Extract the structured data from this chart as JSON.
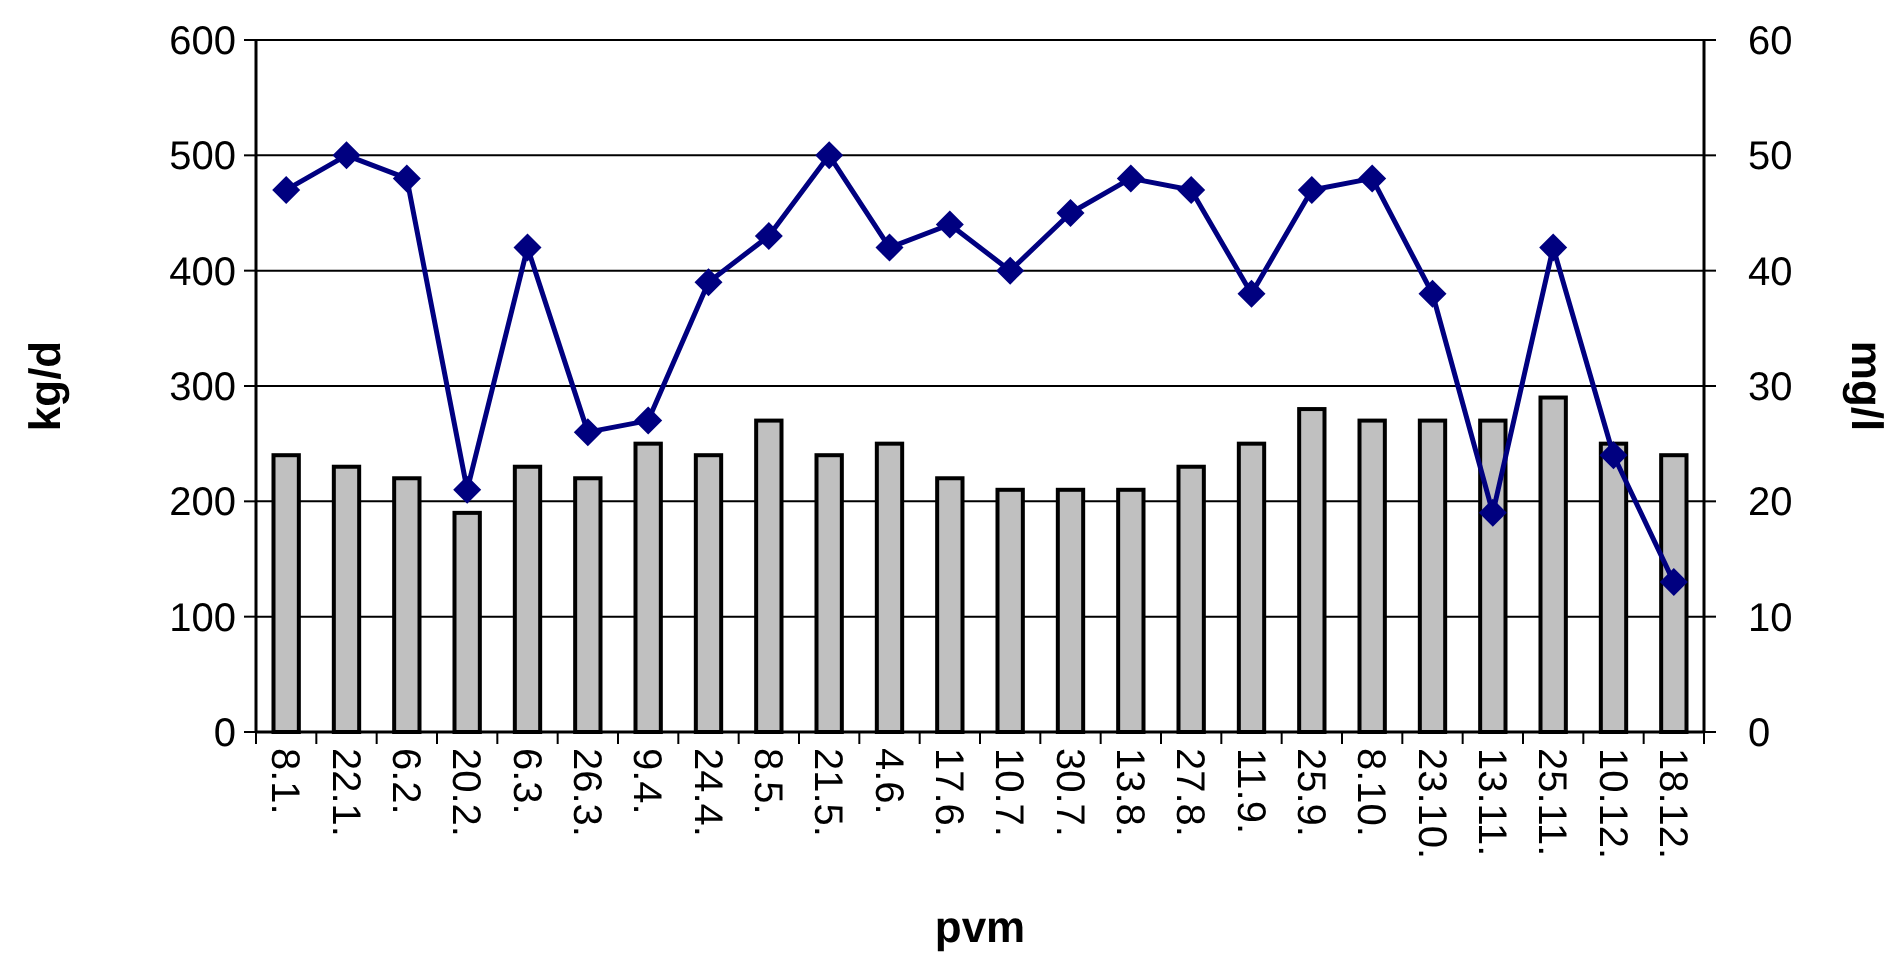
{
  "chart_data": {
    "type": "bar",
    "xlabel": "pvm",
    "ylabel": "kg/d",
    "y2label": "mg/l",
    "categories": [
      "8.1.",
      "22.1.",
      "6.2.",
      "20.2.",
      "6.3.",
      "26.3.",
      "9.4.",
      "24.4.",
      "8.5.",
      "21.5.",
      "4.6.",
      "17.6.",
      "10.7.",
      "30.7.",
      "13.8.",
      "27.8.",
      "11.9.",
      "25.9.",
      "8.10.",
      "23.10.",
      "13.11.",
      "25.11.",
      "10.12.",
      "18.12."
    ],
    "series": [
      {
        "color": "#c0c0c0",
        "values": [
          240,
          230,
          220,
          190,
          230,
          220,
          250,
          240,
          270,
          240,
          250,
          220,
          210,
          210,
          210,
          230,
          250,
          280,
          270,
          270,
          270,
          290,
          250,
          240
        ]
      },
      {
        "type": "line",
        "axis": "y2",
        "color": "#000080",
        "marker": "diamond",
        "values": [
          47,
          50,
          48,
          21,
          42,
          26,
          27,
          39,
          43,
          50,
          42,
          44,
          40,
          45,
          48,
          47,
          38,
          47,
          48,
          38,
          19,
          42,
          24,
          13
        ]
      }
    ],
    "ylim": [
      0,
      600
    ],
    "yticks": [
      0,
      100,
      200,
      300,
      400,
      500,
      600
    ],
    "y2lim": [
      0,
      60
    ],
    "y2ticks": [
      0,
      10,
      20,
      30,
      40,
      50,
      60
    ],
    "grid": "y"
  }
}
